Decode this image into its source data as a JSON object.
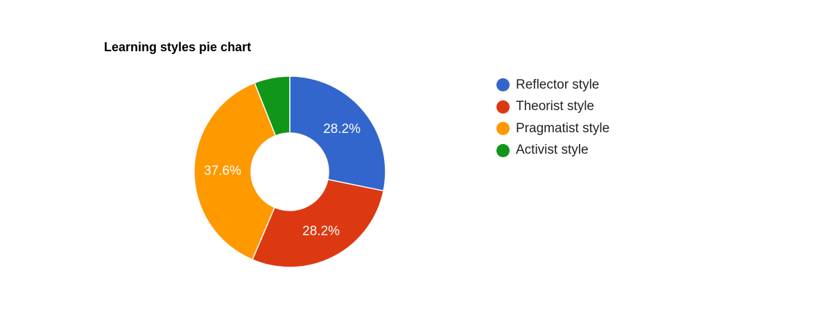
{
  "chart_data": {
    "type": "pie",
    "title": "Learning styles pie chart",
    "donut": true,
    "legend_position": "right",
    "slices": [
      {
        "label": "Reflector style",
        "value": 28.2,
        "display": "28.2%",
        "color": "#3366cc"
      },
      {
        "label": "Theorist style",
        "value": 28.2,
        "display": "28.2%",
        "color": "#dc3912"
      },
      {
        "label": "Pragmatist style",
        "value": 37.6,
        "display": "37.6%",
        "color": "#ff9900"
      },
      {
        "label": "Activist style",
        "value": 6.0,
        "display": "",
        "color": "#109618"
      }
    ]
  }
}
